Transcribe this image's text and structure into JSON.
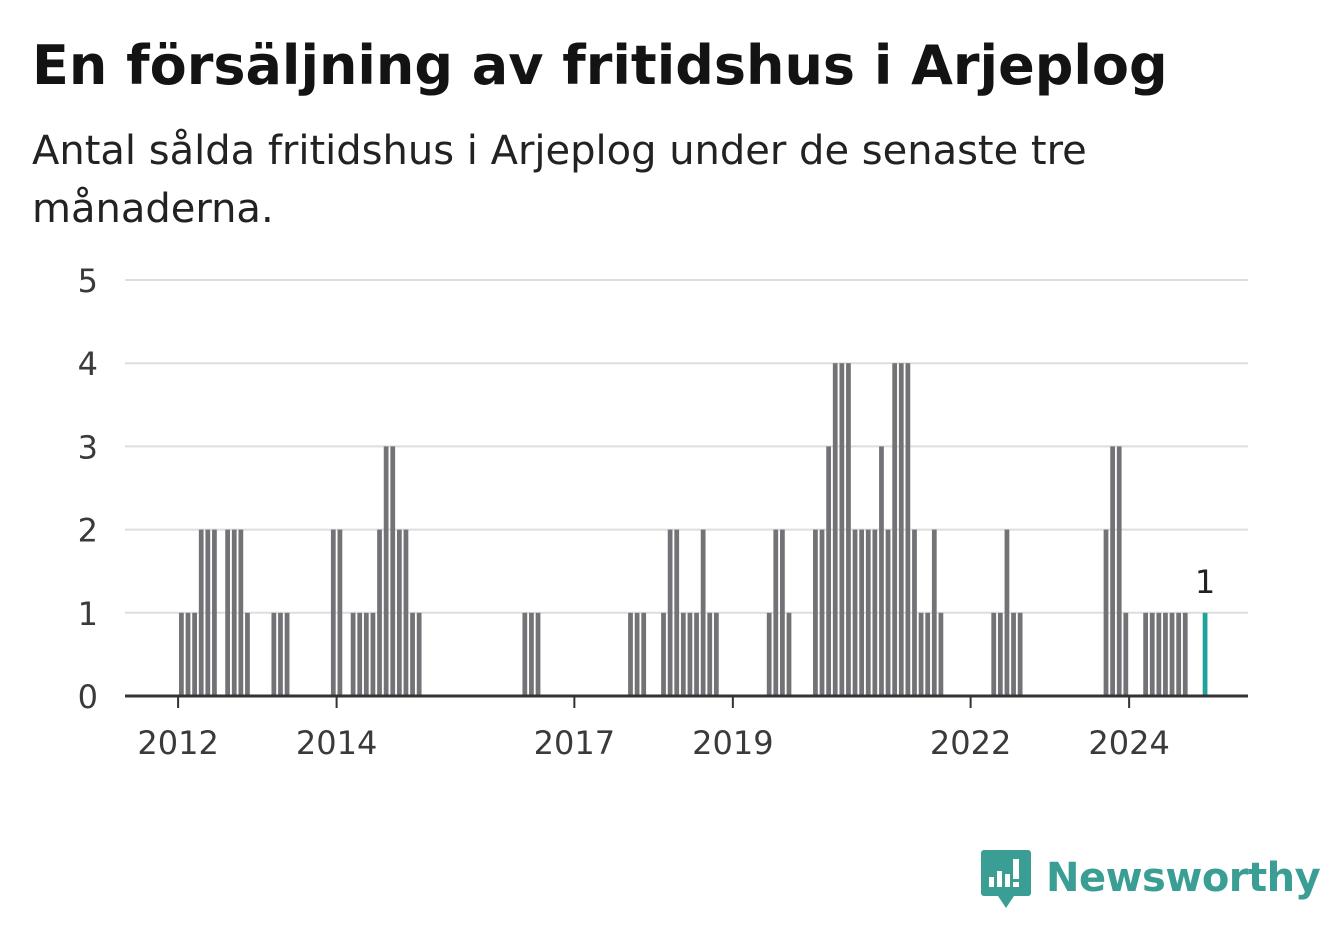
{
  "title": "En försäljning av fritidshus i Arjeplog",
  "subtitle": "Antal sålda fritidshus i Arjeplog under de senaste tre månaderna.",
  "brand": {
    "name": "Newsworthy",
    "color": "#3a9e94"
  },
  "colors": {
    "bar": "#737276",
    "highlight": "#1fa39a",
    "grid": "#dedede",
    "axis": "#333333"
  },
  "chart_data": {
    "type": "bar",
    "ylim": [
      0,
      5
    ],
    "y_ticks": [
      0,
      1,
      2,
      3,
      4,
      5
    ],
    "x_ticks": [
      {
        "label": "2012",
        "value": 2012
      },
      {
        "label": "2014",
        "value": 2014
      },
      {
        "label": "2017",
        "value": 2017
      },
      {
        "label": "2019",
        "value": 2019
      },
      {
        "label": "2022",
        "value": 2022
      },
      {
        "label": "2024",
        "value": 2024
      }
    ],
    "x_range": [
      2011.33,
      2025.5
    ],
    "grid": true,
    "bar_period": "month",
    "series": [
      {
        "values": [
          {
            "x": "2012-01",
            "y": 1
          },
          {
            "x": "2012-02",
            "y": 1
          },
          {
            "x": "2012-03",
            "y": 1
          },
          {
            "x": "2012-04",
            "y": 2
          },
          {
            "x": "2012-05",
            "y": 2
          },
          {
            "x": "2012-06",
            "y": 2
          },
          {
            "x": "2012-08",
            "y": 2
          },
          {
            "x": "2012-09",
            "y": 2
          },
          {
            "x": "2012-10",
            "y": 2
          },
          {
            "x": "2012-11",
            "y": 1
          },
          {
            "x": "2013-03",
            "y": 1
          },
          {
            "x": "2013-04",
            "y": 1
          },
          {
            "x": "2013-05",
            "y": 1
          },
          {
            "x": "2013-12",
            "y": 2
          },
          {
            "x": "2014-01",
            "y": 2
          },
          {
            "x": "2014-03",
            "y": 1
          },
          {
            "x": "2014-04",
            "y": 1
          },
          {
            "x": "2014-05",
            "y": 1
          },
          {
            "x": "2014-06",
            "y": 1
          },
          {
            "x": "2014-07",
            "y": 2
          },
          {
            "x": "2014-08",
            "y": 3
          },
          {
            "x": "2014-09",
            "y": 3
          },
          {
            "x": "2014-10",
            "y": 2
          },
          {
            "x": "2014-11",
            "y": 2
          },
          {
            "x": "2014-12",
            "y": 1
          },
          {
            "x": "2015-01",
            "y": 1
          },
          {
            "x": "2016-05",
            "y": 1
          },
          {
            "x": "2016-06",
            "y": 1
          },
          {
            "x": "2016-07",
            "y": 1
          },
          {
            "x": "2017-09",
            "y": 1
          },
          {
            "x": "2017-10",
            "y": 1
          },
          {
            "x": "2017-11",
            "y": 1
          },
          {
            "x": "2018-02",
            "y": 1
          },
          {
            "x": "2018-03",
            "y": 2
          },
          {
            "x": "2018-04",
            "y": 2
          },
          {
            "x": "2018-05",
            "y": 1
          },
          {
            "x": "2018-06",
            "y": 1
          },
          {
            "x": "2018-07",
            "y": 1
          },
          {
            "x": "2018-08",
            "y": 2
          },
          {
            "x": "2018-09",
            "y": 1
          },
          {
            "x": "2018-10",
            "y": 1
          },
          {
            "x": "2019-06",
            "y": 1
          },
          {
            "x": "2019-07",
            "y": 2
          },
          {
            "x": "2019-08",
            "y": 2
          },
          {
            "x": "2019-09",
            "y": 1
          },
          {
            "x": "2020-01",
            "y": 2
          },
          {
            "x": "2020-02",
            "y": 2
          },
          {
            "x": "2020-03",
            "y": 3
          },
          {
            "x": "2020-04",
            "y": 4
          },
          {
            "x": "2020-05",
            "y": 4
          },
          {
            "x": "2020-06",
            "y": 4
          },
          {
            "x": "2020-07",
            "y": 2
          },
          {
            "x": "2020-08",
            "y": 2
          },
          {
            "x": "2020-09",
            "y": 2
          },
          {
            "x": "2020-10",
            "y": 2
          },
          {
            "x": "2020-11",
            "y": 3
          },
          {
            "x": "2020-12",
            "y": 2
          },
          {
            "x": "2021-01",
            "y": 4
          },
          {
            "x": "2021-02",
            "y": 4
          },
          {
            "x": "2021-03",
            "y": 4
          },
          {
            "x": "2021-04",
            "y": 2
          },
          {
            "x": "2021-05",
            "y": 1
          },
          {
            "x": "2021-06",
            "y": 1
          },
          {
            "x": "2021-07",
            "y": 2
          },
          {
            "x": "2021-08",
            "y": 1
          },
          {
            "x": "2022-04",
            "y": 1
          },
          {
            "x": "2022-05",
            "y": 1
          },
          {
            "x": "2022-06",
            "y": 2
          },
          {
            "x": "2022-07",
            "y": 1
          },
          {
            "x": "2022-08",
            "y": 1
          },
          {
            "x": "2023-09",
            "y": 2
          },
          {
            "x": "2023-10",
            "y": 3
          },
          {
            "x": "2023-11",
            "y": 3
          },
          {
            "x": "2023-12",
            "y": 1
          },
          {
            "x": "2024-03",
            "y": 1
          },
          {
            "x": "2024-04",
            "y": 1
          },
          {
            "x": "2024-05",
            "y": 1
          },
          {
            "x": "2024-06",
            "y": 1
          },
          {
            "x": "2024-07",
            "y": 1
          },
          {
            "x": "2024-08",
            "y": 1
          },
          {
            "x": "2024-09",
            "y": 1
          }
        ]
      }
    ],
    "highlight": {
      "x": "2024-12",
      "y": 1,
      "label": "1"
    }
  }
}
